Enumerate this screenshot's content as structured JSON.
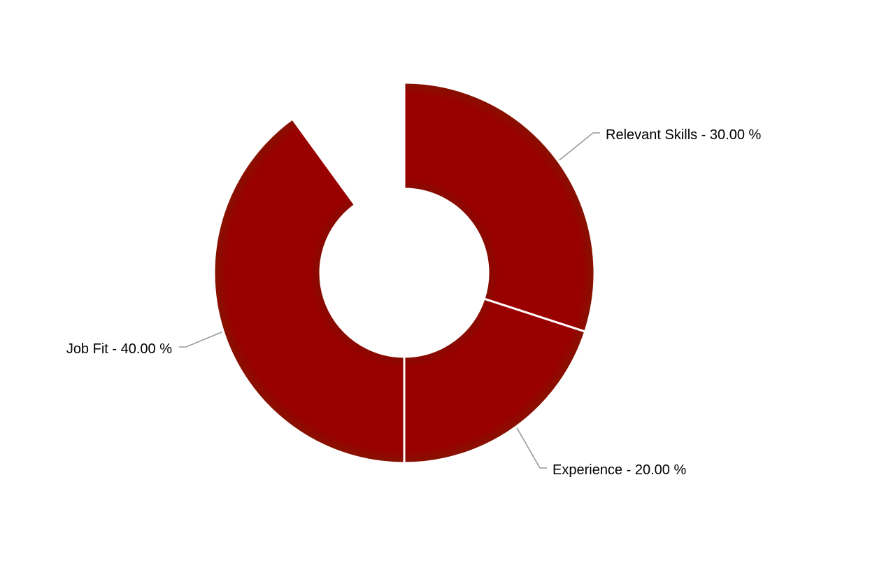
{
  "chart_data": {
    "type": "pie",
    "style": "donut",
    "slices": [
      {
        "label": "Relevant Skills - 30.00 %",
        "value": 30.0
      },
      {
        "label": "Experience - 20.00 %",
        "value": 20.0
      },
      {
        "label": "Job Fit - 40.00 %",
        "value": 40.0
      }
    ],
    "unfilled_value": 10.0,
    "colors": {
      "slice": "#990000",
      "slice_edge": "#801000",
      "leader": "#9a9a9a",
      "separator": "#ffffff"
    }
  }
}
